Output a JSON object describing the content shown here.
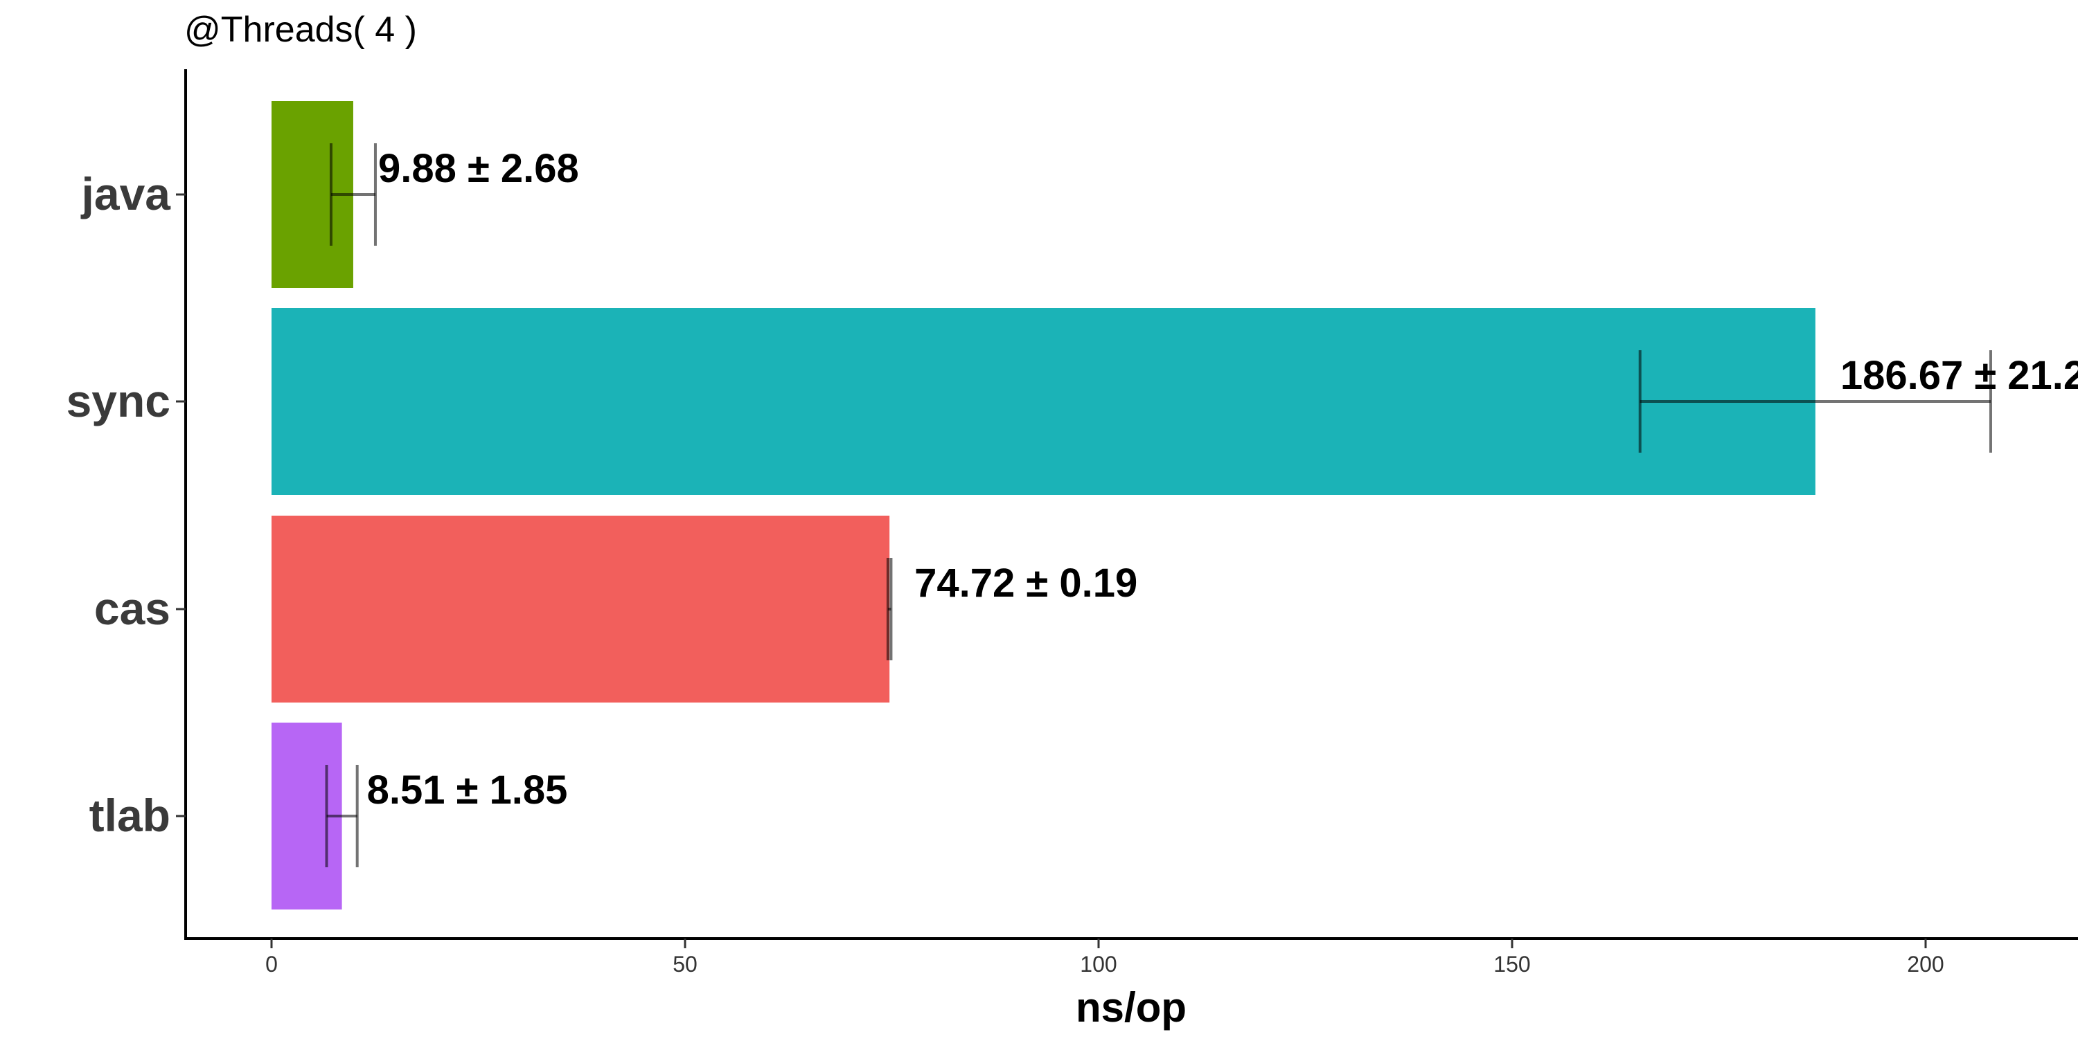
{
  "chart_data": {
    "type": "bar",
    "orientation": "horizontal",
    "subtitle": "@Threads( 4 )",
    "xlabel": "ns/op",
    "ylabel": "",
    "categories": [
      "java",
      "sync",
      "cas",
      "tlab"
    ],
    "values": [
      9.88,
      186.67,
      74.72,
      8.51
    ],
    "errors": [
      2.68,
      21.2,
      0.19,
      1.85
    ],
    "labels": [
      "9.88 ± 2.68",
      "186.67 ± 21.2",
      "74.72 ± 0.19",
      "8.51 ± 1.85"
    ],
    "colors": [
      "#6aa200",
      "#1bb3b7",
      "#f25f5c",
      "#b766f5"
    ],
    "xlim": [
      -10,
      220
    ],
    "xticks": [
      "0",
      "50",
      "100",
      "150",
      "200"
    ],
    "grid": false,
    "legend": "none"
  }
}
